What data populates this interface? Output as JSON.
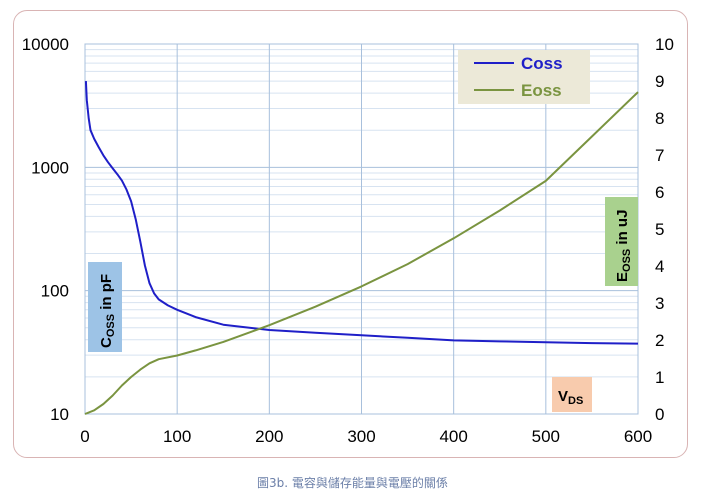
{
  "caption": "圖3b. 電容與儲存能量與電壓的關係",
  "chart_data": {
    "type": "line",
    "x": {
      "range": [
        0,
        600
      ],
      "ticks": [
        "0",
        "100",
        "200",
        "300",
        "400",
        "500",
        "600"
      ],
      "label": "V",
      "label_subscript": "DS"
    },
    "y_left": {
      "scale": "log",
      "range": [
        10,
        10000
      ],
      "ticks": [
        "10",
        "100",
        "1000",
        "10000"
      ],
      "label": "C",
      "label_subscript": "OSS",
      "label_suffix": " in pF"
    },
    "y_right": {
      "scale": "linear",
      "range": [
        0,
        10
      ],
      "ticks": [
        "0",
        "1",
        "2",
        "3",
        "4",
        "5",
        "6",
        "7",
        "8",
        "9",
        "10"
      ],
      "label": "E",
      "label_subscript": "OSS",
      "label_suffix": " in uJ"
    },
    "grid": true,
    "legend_position": "top-right",
    "series": [
      {
        "name": "Coss",
        "axis": "left",
        "color": "#1f1fc8",
        "points": [
          [
            1,
            5000
          ],
          [
            2,
            3500
          ],
          [
            4,
            2500
          ],
          [
            6,
            2000
          ],
          [
            10,
            1700
          ],
          [
            15,
            1450
          ],
          [
            20,
            1250
          ],
          [
            25,
            1100
          ],
          [
            30,
            980
          ],
          [
            35,
            880
          ],
          [
            40,
            780
          ],
          [
            45,
            660
          ],
          [
            50,
            530
          ],
          [
            55,
            380
          ],
          [
            60,
            250
          ],
          [
            65,
            160
          ],
          [
            70,
            115
          ],
          [
            75,
            95
          ],
          [
            80,
            85
          ],
          [
            90,
            76
          ],
          [
            100,
            70
          ],
          [
            120,
            61
          ],
          [
            150,
            53
          ],
          [
            200,
            48
          ],
          [
            250,
            45.5
          ],
          [
            300,
            43.5
          ],
          [
            350,
            41.5
          ],
          [
            400,
            39.5
          ],
          [
            450,
            38.8
          ],
          [
            500,
            38.2
          ],
          [
            550,
            37.6
          ],
          [
            600,
            37.2
          ]
        ]
      },
      {
        "name": "Eoss",
        "axis": "right",
        "color": "#7a9440",
        "points": [
          [
            0,
            0
          ],
          [
            10,
            0.1
          ],
          [
            20,
            0.27
          ],
          [
            30,
            0.5
          ],
          [
            40,
            0.77
          ],
          [
            50,
            1.0
          ],
          [
            60,
            1.2
          ],
          [
            70,
            1.37
          ],
          [
            80,
            1.48
          ],
          [
            100,
            1.58
          ],
          [
            120,
            1.72
          ],
          [
            150,
            1.95
          ],
          [
            200,
            2.4
          ],
          [
            250,
            2.9
          ],
          [
            300,
            3.45
          ],
          [
            350,
            4.05
          ],
          [
            400,
            4.75
          ],
          [
            450,
            5.5
          ],
          [
            500,
            6.3
          ],
          [
            550,
            7.5
          ],
          [
            600,
            8.7
          ]
        ]
      }
    ]
  }
}
